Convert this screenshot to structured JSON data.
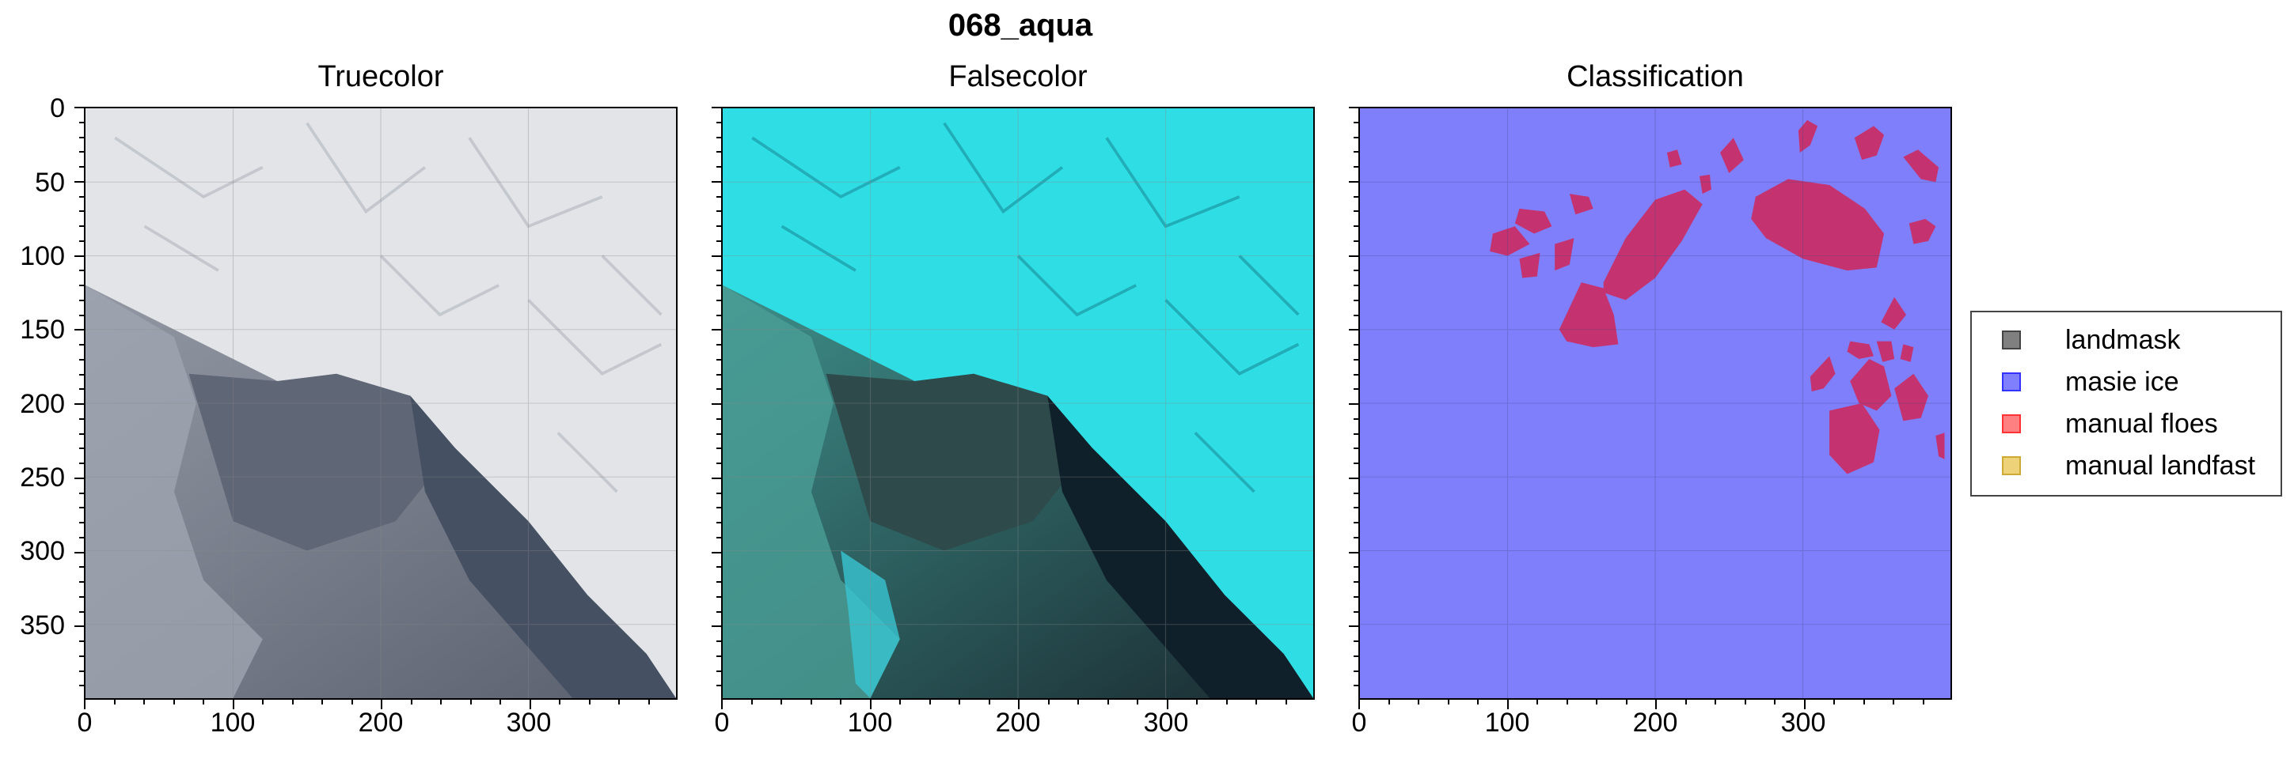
{
  "figure": {
    "suptitle": "068_aqua",
    "panels": [
      {
        "title": "Truecolor"
      },
      {
        "title": "Falsecolor"
      },
      {
        "title": "Classification"
      }
    ],
    "y_ticks": [
      "0",
      "50",
      "100",
      "150",
      "200",
      "250",
      "300",
      "350"
    ],
    "x_ticks": [
      "0",
      "100",
      "200",
      "300"
    ],
    "legend": [
      {
        "label": "landmask",
        "color": "#808080",
        "edge": "#444444"
      },
      {
        "label": "masie ice",
        "color": "#8080ff",
        "edge": "#3333ff"
      },
      {
        "label": "manual floes",
        "color": "#ff8080",
        "edge": "#ff3333"
      },
      {
        "label": "manual landfast",
        "color": "#eed27a",
        "edge": "#ccaa33"
      }
    ]
  },
  "colors": {
    "classification_bg": "#7f7ffb",
    "floe_fill": "#c4336f",
    "truecolor_ice": "#e4e6ea",
    "truecolor_water": "#5d6473",
    "falsecolor_ice": "#2fe0e6",
    "falsecolor_water": "#243a3c"
  }
}
